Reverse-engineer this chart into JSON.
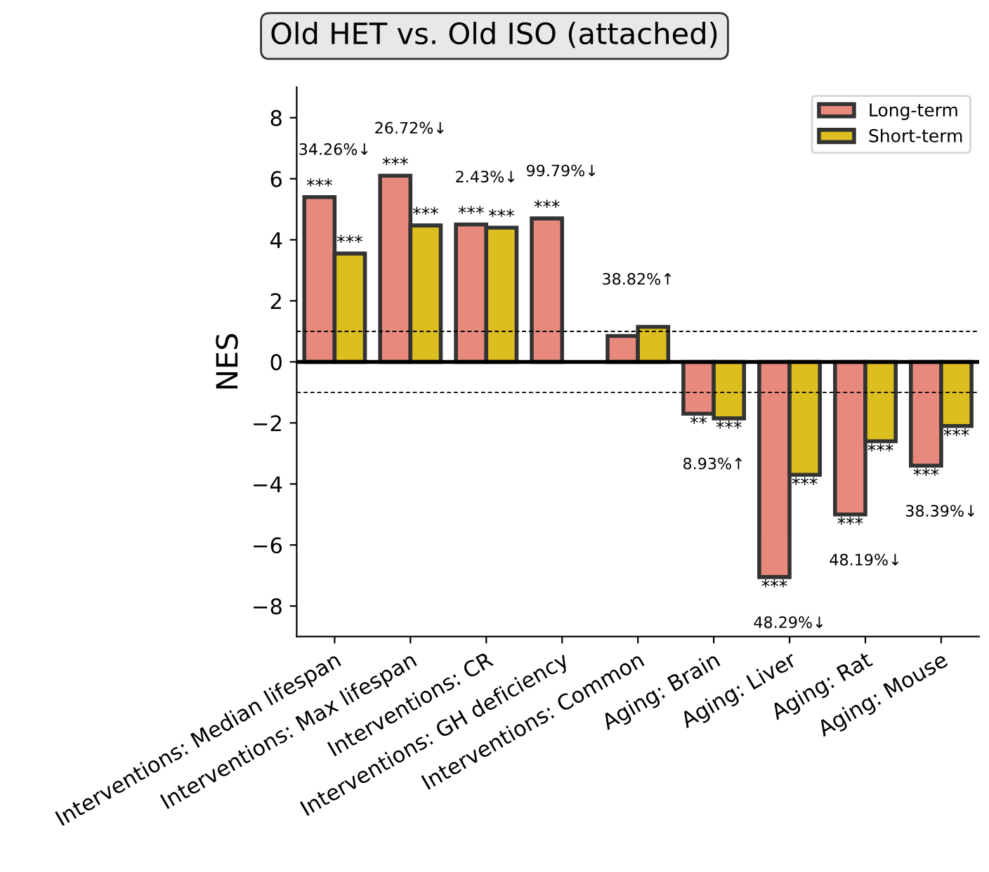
{
  "chart_data": {
    "type": "bar",
    "title": "Old HET vs. Old ISO (attached)",
    "ylabel": "NES",
    "categories": [
      "Interventions: Median lifespan",
      "Interventions: Max lifespan",
      "Interventions: CR",
      "Interventions: GH deficiency",
      "Interventions: Common",
      "Aging: Brain",
      "Aging: Liver",
      "Aging: Rat",
      "Aging: Mouse"
    ],
    "series": [
      {
        "name": "Long-term",
        "color": "#e8897e",
        "values": [
          5.4,
          6.1,
          4.5,
          4.7,
          0.85,
          -1.7,
          -7.05,
          -5.0,
          -3.4
        ],
        "value_labels": [
          "***",
          "***",
          "***",
          "***",
          null,
          "**",
          "***",
          "***",
          "***"
        ]
      },
      {
        "name": "Short-term",
        "color": "#dcbf1f",
        "values": [
          3.55,
          4.47,
          4.4,
          null,
          1.15,
          -1.85,
          -3.7,
          -2.6,
          -2.1
        ],
        "value_labels": [
          "***",
          "***",
          "***",
          null,
          null,
          "***",
          "***",
          "***",
          "***"
        ]
      }
    ],
    "ylim": [
      -9,
      9
    ],
    "yticks": [
      {
        "value": -8,
        "label": "−8"
      },
      {
        "value": -6,
        "label": "−6"
      },
      {
        "value": -4,
        "label": "−4"
      },
      {
        "value": -2,
        "label": "−2"
      },
      0,
      2,
      4,
      6,
      8
    ],
    "ref_lines": [
      {
        "axis": "y",
        "value": 1,
        "color": "#000000",
        "line_style": "dashed"
      },
      {
        "axis": "y",
        "value": -1,
        "color": "#000000",
        "line_style": "dashed"
      },
      {
        "axis": "y",
        "value": 0,
        "color": "#000000",
        "line_style": "solid"
      }
    ],
    "annotations": [
      "34.26%↓",
      "26.72%↓",
      "2.43%↓",
      "99.79%↓",
      "38.82%↑",
      "8.93%↑",
      "48.29%↓",
      "48.19%↓",
      "38.39%↓"
    ],
    "legend": "top right",
    "grid": false
  }
}
